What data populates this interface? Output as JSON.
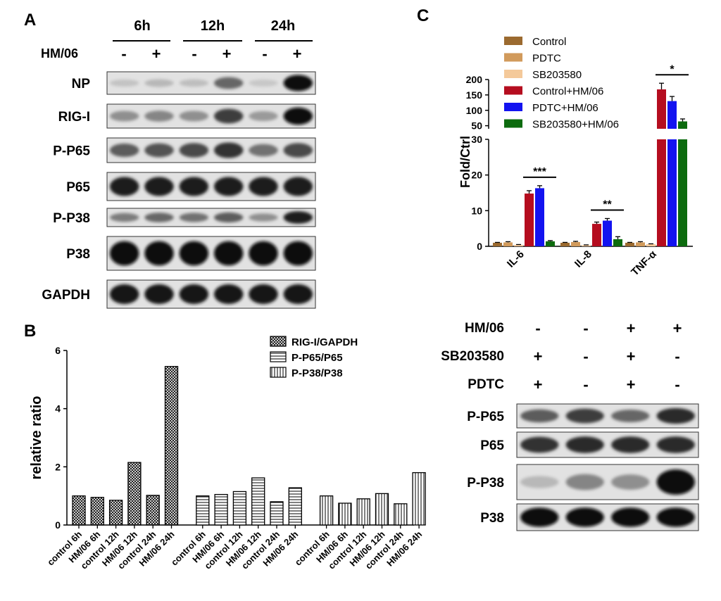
{
  "panel_a": {
    "letter": "A",
    "timepoints": [
      "6h",
      "12h",
      "24h"
    ],
    "treatment_label": "HM/06",
    "treatment_signs": [
      "-",
      "+",
      "-",
      "+",
      "-",
      "+"
    ],
    "blots": [
      {
        "label": "NP",
        "intensities": [
          0.1,
          0.15,
          0.12,
          0.55,
          0.08,
          1.0
        ]
      },
      {
        "label": "RIG-I",
        "intensities": [
          0.35,
          0.4,
          0.35,
          0.75,
          0.3,
          1.0
        ]
      },
      {
        "label": "P-P65",
        "intensities": [
          0.6,
          0.65,
          0.7,
          0.8,
          0.5,
          0.7
        ]
      },
      {
        "label": "P65",
        "intensities": [
          0.9,
          0.9,
          0.9,
          0.9,
          0.9,
          0.9
        ]
      },
      {
        "label": "P-P38",
        "intensities": [
          0.45,
          0.55,
          0.5,
          0.6,
          0.35,
          0.9
        ]
      },
      {
        "label": "P38",
        "intensities": [
          1.0,
          1.0,
          1.0,
          1.0,
          1.0,
          1.0
        ]
      },
      {
        "label": "GAPDH",
        "intensities": [
          0.95,
          0.95,
          0.95,
          0.95,
          0.95,
          0.95
        ]
      }
    ]
  },
  "panel_b": {
    "letter": "B",
    "chart_data": {
      "type": "bar",
      "ylabel": "relative ratio",
      "ylim": [
        0,
        6
      ],
      "yticks": [
        "0",
        "2",
        "4",
        "6"
      ],
      "categories": [
        "control 6h",
        "HM/06 6h",
        "control 12h",
        "HM/06 12h",
        "control 24h",
        "HM/06 24h"
      ],
      "legend_position": "top-right",
      "series": [
        {
          "name": "RIG-I/GAPDH",
          "pattern": "crosshatch",
          "values": [
            1.0,
            0.95,
            0.85,
            2.15,
            1.02,
            5.45
          ]
        },
        {
          "name": "P-P65/P65",
          "pattern": "horizontal",
          "values": [
            1.0,
            1.05,
            1.15,
            1.62,
            0.8,
            1.28
          ]
        },
        {
          "name": "P-P38/P38",
          "pattern": "vertical",
          "values": [
            1.0,
            0.75,
            0.9,
            1.08,
            0.73,
            1.8
          ]
        }
      ]
    }
  },
  "panel_c": {
    "letter": "C",
    "chart_data": {
      "type": "bar",
      "ylabel": "Fold/Ctrl",
      "categories": [
        "IL-6",
        "IL-8",
        "TNF-α"
      ],
      "broken_axis": true,
      "ylim_lower": [
        0,
        30
      ],
      "yticks_lower": [
        "0",
        "10",
        "20",
        "30"
      ],
      "ylim_upper": [
        40,
        200
      ],
      "yticks_upper": [
        "50",
        "100",
        "150",
        "200"
      ],
      "series": [
        {
          "name": "Control",
          "color": "#9b6a2f",
          "values": [
            1.0,
            1.0,
            1.0
          ],
          "errors": [
            0.1,
            0.1,
            0.1
          ]
        },
        {
          "name": "PDTC",
          "color": "#d19a5b",
          "values": [
            1.1,
            1.2,
            1.1
          ],
          "errors": [
            0.2,
            0.2,
            0.2
          ]
        },
        {
          "name": "SB203580",
          "color": "#f4c99a",
          "values": [
            0.4,
            0.3,
            0.6
          ],
          "errors": [
            0.1,
            0.1,
            0.1
          ]
        },
        {
          "name": "Control+HM/06",
          "color": "#b50d1f",
          "values": [
            14.8,
            6.3,
            168
          ],
          "errors": [
            0.8,
            0.5,
            20
          ]
        },
        {
          "name": "PDTC+HM/06",
          "color": "#1313f0",
          "values": [
            16.3,
            7.2,
            130
          ],
          "errors": [
            0.7,
            0.6,
            15
          ]
        },
        {
          "name": "SB203580+HM/06",
          "color": "#0c6b0e",
          "values": [
            1.4,
            2.0,
            64
          ],
          "errors": [
            0.2,
            0.7,
            8
          ]
        }
      ],
      "significance": [
        "***",
        "**",
        "*"
      ]
    }
  },
  "panel_d": {
    "rows": [
      {
        "label": "HM/06",
        "signs": [
          "-",
          "-",
          "+",
          "+"
        ]
      },
      {
        "label": "SB203580",
        "signs": [
          "+",
          "-",
          "+",
          "-"
        ]
      },
      {
        "label": "PDTC",
        "signs": [
          "+",
          "-",
          "+",
          "-"
        ]
      }
    ],
    "blots": [
      {
        "label": "P-P65",
        "intensities": [
          0.6,
          0.75,
          0.55,
          0.85
        ]
      },
      {
        "label": "P65",
        "intensities": [
          0.8,
          0.85,
          0.85,
          0.85
        ]
      },
      {
        "label": "P-P38",
        "intensities": [
          0.15,
          0.4,
          0.35,
          1.0
        ]
      },
      {
        "label": "P38",
        "intensities": [
          1.0,
          1.0,
          1.0,
          1.0
        ]
      }
    ]
  }
}
